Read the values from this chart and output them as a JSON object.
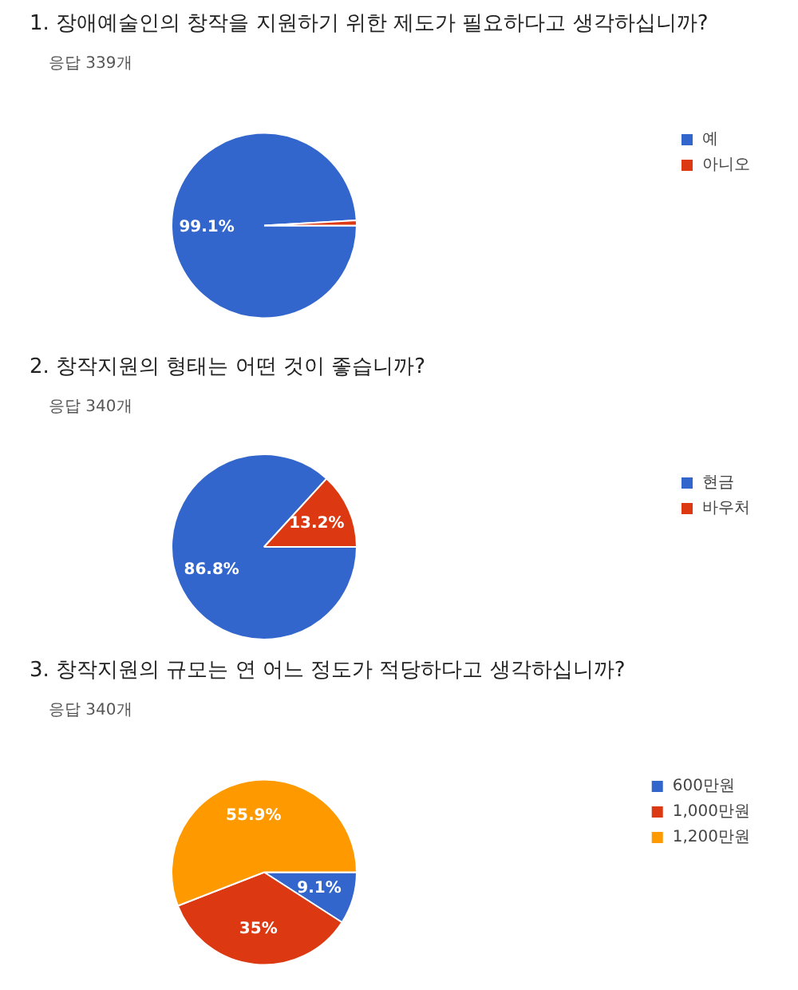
{
  "chart_data": [
    {
      "type": "pie",
      "title": "1. 장애예술인의 창작을 지원하기 위한 제도가 필요하다고 생각하십니까?",
      "subtitle": "응답 339개",
      "categories": [
        "예",
        "아니오"
      ],
      "values": [
        99.1,
        0.9
      ],
      "colors": [
        "#3366cc",
        "#dc3912"
      ],
      "value_labels": [
        "99.1%",
        null
      ],
      "legend": "top right"
    },
    {
      "type": "pie",
      "title": "2. 창작지원의 형태는 어떤 것이 좋습니까?",
      "subtitle": "응답 340개",
      "categories": [
        "현금",
        "바우처"
      ],
      "values": [
        86.8,
        13.2
      ],
      "colors": [
        "#3366cc",
        "#dc3912"
      ],
      "value_labels": [
        "86.8%",
        "13.2%"
      ],
      "legend": "top right"
    },
    {
      "type": "pie",
      "title": "3. 창작지원의 규모는 연 어느 정도가 적당하다고 생각하십니까?",
      "subtitle": "응답 340개",
      "categories": [
        "600만원",
        "1,000만원",
        "1,200만원"
      ],
      "values": [
        9.1,
        35,
        55.9
      ],
      "colors": [
        "#3366cc",
        "#dc3912",
        "#ff9900"
      ],
      "value_labels": [
        "9.1%",
        "35%",
        "55.9%"
      ],
      "legend": "top right"
    }
  ]
}
